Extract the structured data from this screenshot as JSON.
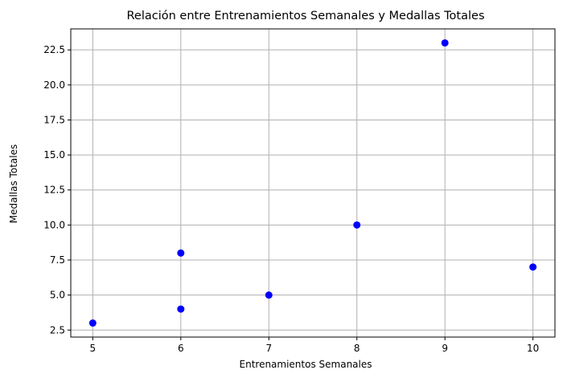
{
  "chart_data": {
    "type": "scatter",
    "title": "Relación entre Entrenamientos Semanales y Medallas Totales",
    "xlabel": "Entrenamientos Semanales",
    "ylabel": "Medallas Totales",
    "xlim": [
      4.75,
      10.25
    ],
    "ylim": [
      2.0,
      24.0
    ],
    "xticks": [
      5,
      6,
      7,
      8,
      9,
      10
    ],
    "xtick_labels": [
      "5",
      "6",
      "7",
      "8",
      "9",
      "10"
    ],
    "yticks": [
      2.5,
      5.0,
      7.5,
      10.0,
      12.5,
      15.0,
      17.5,
      20.0,
      22.5
    ],
    "ytick_labels": [
      "2.5",
      "5.0",
      "7.5",
      "10.0",
      "12.5",
      "15.0",
      "17.5",
      "20.0",
      "22.5"
    ],
    "grid": true,
    "marker_color": "#0000ff",
    "points": [
      {
        "x": 5,
        "y": 3
      },
      {
        "x": 6,
        "y": 8
      },
      {
        "x": 6,
        "y": 4
      },
      {
        "x": 7,
        "y": 5
      },
      {
        "x": 8,
        "y": 10
      },
      {
        "x": 9,
        "y": 23
      },
      {
        "x": 10,
        "y": 7
      }
    ]
  }
}
